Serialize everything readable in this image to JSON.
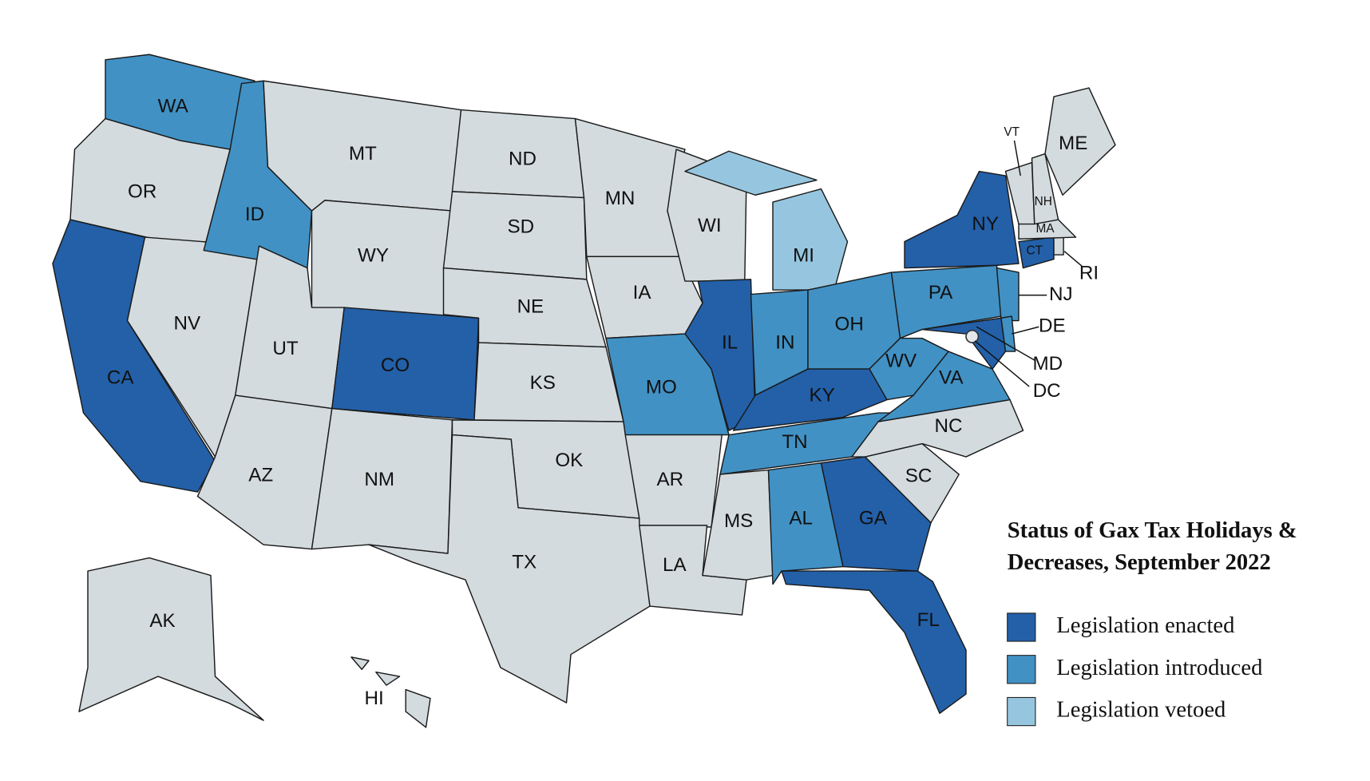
{
  "map": {
    "title": [
      "Status of Gax Tax Holidays &",
      "Decreases, September 2022"
    ],
    "legend": [
      {
        "label": "Legislation enacted",
        "color": "#2360a8"
      },
      {
        "label": "Legislation introduced",
        "color": "#4191c4"
      },
      {
        "label": "Legislation vetoed",
        "color": "#96c6df"
      }
    ],
    "states": [
      {
        "label": "WA",
        "color": "#4191c4"
      },
      {
        "label": "OR",
        "color": "#d3dbde"
      },
      {
        "label": "CA",
        "color": "#2360a8"
      },
      {
        "label": "NV",
        "color": "#d3dbde"
      },
      {
        "label": "ID",
        "color": "#4191c4"
      },
      {
        "label": "MT",
        "color": "#d3dbde"
      },
      {
        "label": "WY",
        "color": "#d3dbde"
      },
      {
        "label": "UT",
        "color": "#d3dbde"
      },
      {
        "label": "AZ",
        "color": "#d3dbde"
      },
      {
        "label": "CO",
        "color": "#2360a8"
      },
      {
        "label": "NM",
        "color": "#d3dbde"
      },
      {
        "label": "ND",
        "color": "#d3dbde"
      },
      {
        "label": "SD",
        "color": "#d3dbde"
      },
      {
        "label": "NE",
        "color": "#d3dbde"
      },
      {
        "label": "KS",
        "color": "#d3dbde"
      },
      {
        "label": "OK",
        "color": "#d3dbde"
      },
      {
        "label": "TX",
        "color": "#d3dbde"
      },
      {
        "label": "MN",
        "color": "#d3dbde"
      },
      {
        "label": "IA",
        "color": "#d3dbde"
      },
      {
        "label": "MO",
        "color": "#4191c4"
      },
      {
        "label": "AR",
        "color": "#d3dbde"
      },
      {
        "label": "LA",
        "color": "#d3dbde"
      },
      {
        "label": "WI",
        "color": "#d3dbde"
      },
      {
        "label": "IL",
        "color": "#2360a8"
      },
      {
        "label": "MI",
        "color": "#96c6df"
      },
      {
        "label": "IN",
        "color": "#4191c4"
      },
      {
        "label": "OH",
        "color": "#4191c4"
      },
      {
        "label": "KY",
        "color": "#2360a8"
      },
      {
        "label": "TN",
        "color": "#4191c4"
      },
      {
        "label": "MS",
        "color": "#d3dbde"
      },
      {
        "label": "AL",
        "color": "#4191c4"
      },
      {
        "label": "GA",
        "color": "#2360a8"
      },
      {
        "label": "FL",
        "color": "#2360a8"
      },
      {
        "label": "SC",
        "color": "#d3dbde"
      },
      {
        "label": "NC",
        "color": "#d3dbde"
      },
      {
        "label": "VA",
        "color": "#4191c4"
      },
      {
        "label": "WV",
        "color": "#4191c4"
      },
      {
        "label": "PA",
        "color": "#4191c4"
      },
      {
        "label": "NY",
        "color": "#2360a8"
      },
      {
        "label": "NJ",
        "color": "#4191c4"
      },
      {
        "label": "MD",
        "color": "#2360a8"
      },
      {
        "label": "DE",
        "color": "#4191c4"
      },
      {
        "label": "CT",
        "color": "#2360a8"
      },
      {
        "label": "RI",
        "color": "#d3dbde"
      },
      {
        "label": "MA",
        "color": "#d3dbde"
      },
      {
        "label": "VT",
        "color": "#d3dbde"
      },
      {
        "label": "NH",
        "color": "#d3dbde"
      },
      {
        "label": "ME",
        "color": "#d3dbde"
      },
      {
        "label": "AK",
        "color": "#d3dbde"
      },
      {
        "label": "HI",
        "color": "#d3dbde"
      },
      {
        "label": "DC",
        "color": "#e4e8ea"
      }
    ]
  }
}
